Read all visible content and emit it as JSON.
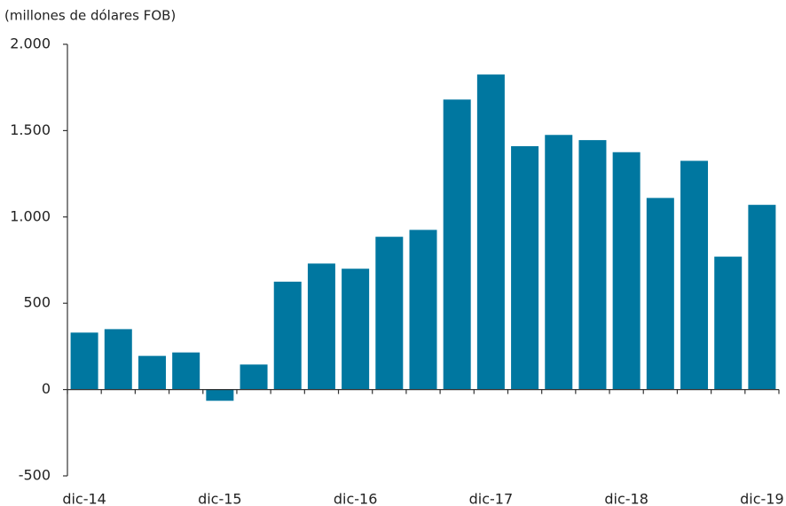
{
  "chart_data": {
    "type": "bar",
    "subtitle": "(millones  de dólares FOB)",
    "categories": [
      "dic-14",
      null,
      null,
      null,
      "dic-15",
      null,
      null,
      null,
      "dic-16",
      null,
      null,
      null,
      "dic-17",
      null,
      null,
      null,
      "dic-18",
      null,
      null,
      null,
      "dic-19"
    ],
    "values": [
      330,
      350,
      195,
      215,
      -65,
      145,
      625,
      730,
      700,
      885,
      925,
      1680,
      1825,
      1410,
      1475,
      1445,
      1375,
      1110,
      1325,
      770,
      1070
    ],
    "color": "#0077a0",
    "ylim": [
      -500,
      2000
    ],
    "yticks": [
      -500,
      0,
      500,
      {
        "value": 1000,
        "label": "1.000"
      },
      {
        "value": 1500,
        "label": "1.500"
      },
      {
        "value": 2000,
        "label": "2.000"
      }
    ],
    "grid": false
  }
}
